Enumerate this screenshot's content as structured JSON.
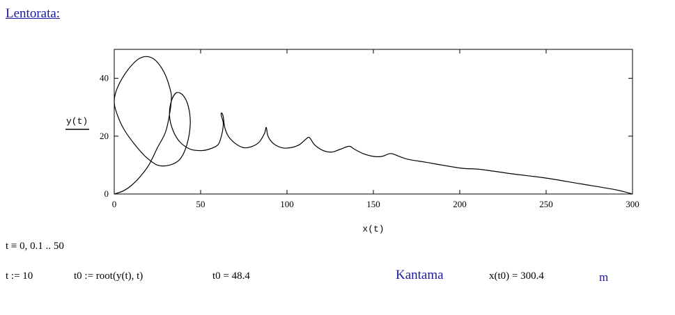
{
  "heading": "Lentorata:",
  "chart_data": {
    "type": "line",
    "title": "",
    "xlabel": "x(t)",
    "ylabel": "y(t)",
    "xlim": [
      0,
      300
    ],
    "ylim": [
      0,
      50
    ],
    "x_ticks": [
      0,
      50,
      100,
      150,
      200,
      250,
      300
    ],
    "y_ticks": [
      0,
      20,
      40
    ],
    "grid": false,
    "series": [
      {
        "x": [
          0,
          5,
          10,
          15,
          20,
          25,
          30,
          33,
          32,
          28,
          22,
          15,
          8,
          2,
          0,
          2,
          6,
          12,
          18,
          25,
          32,
          38,
          42,
          44,
          43,
          40,
          36,
          33,
          32,
          34,
          38,
          44,
          50,
          55,
          60,
          62,
          63,
          63,
          62,
          62,
          63,
          64,
          66,
          70,
          75,
          80,
          84,
          87,
          88,
          89,
          92,
          97,
          102,
          107,
          111,
          113,
          116,
          121,
          126,
          131,
          136,
          139,
          144,
          150,
          155,
          160,
          165,
          170,
          180,
          200,
          212,
          230,
          250,
          270,
          290,
          300
        ],
        "y": [
          0,
          1,
          3,
          6,
          10,
          16,
          22,
          32,
          37,
          43,
          47,
          47,
          43,
          37,
          32,
          27,
          22,
          17,
          13,
          10,
          10,
          12,
          17,
          24,
          30,
          34,
          35,
          32,
          27,
          22,
          18,
          15.5,
          15,
          15.5,
          17,
          20,
          23,
          25,
          27,
          28,
          27,
          23,
          20,
          17.5,
          16,
          16.5,
          18,
          21,
          23,
          20,
          17.5,
          16,
          16,
          17,
          19,
          19.5,
          17,
          15,
          14.5,
          15.5,
          16.5,
          15.5,
          14,
          13,
          13,
          14,
          13,
          12,
          11,
          9,
          8.5,
          7,
          5.5,
          3.5,
          1.5,
          0
        ]
      }
    ]
  },
  "math": {
    "t_range_label": "t ≡ 0, 0.1 .. 50",
    "t_assign_label": "t := 10",
    "t0_def_label": "t0 := root(y(t), t)",
    "t0_value_label": "t0 = 48.4",
    "range_label": "Kantama",
    "range_value_label": "x(t0) = 300.4",
    "unit_label": "m"
  }
}
